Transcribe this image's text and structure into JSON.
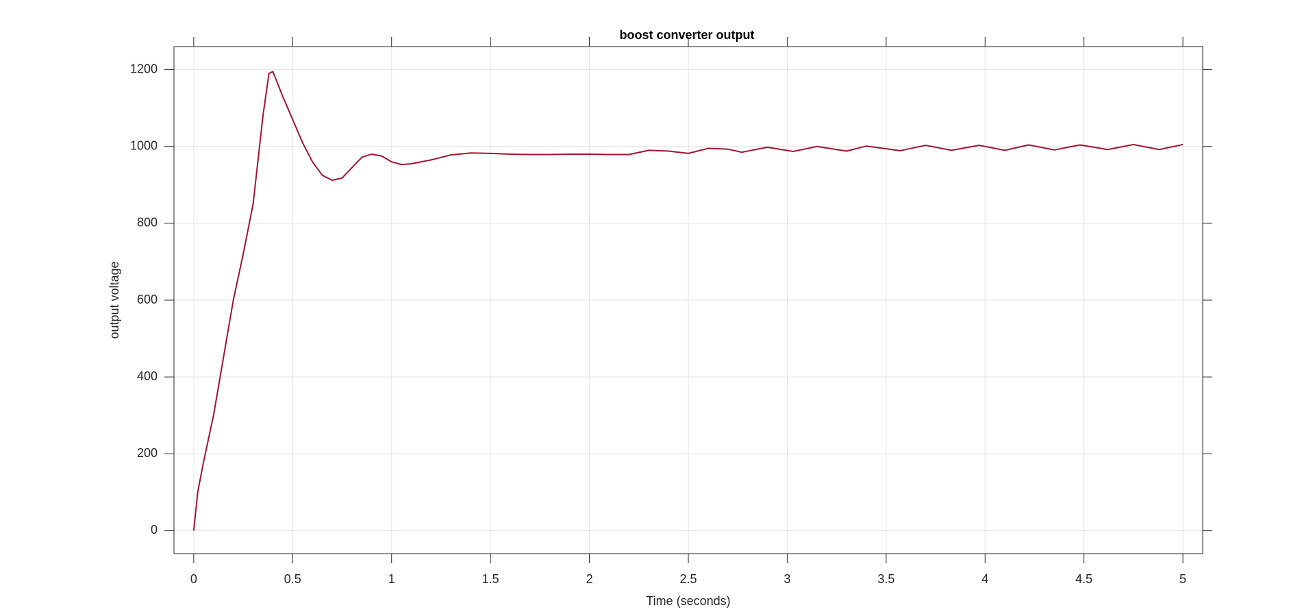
{
  "chart_data": {
    "type": "line",
    "title": "boost converter output",
    "xlabel": "Time (seconds)",
    "ylabel": "output voltage",
    "x": [
      0,
      0.02,
      0.05,
      0.1,
      0.15,
      0.2,
      0.25,
      0.3,
      0.35,
      0.38,
      0.4,
      0.45,
      0.5,
      0.55,
      0.6,
      0.65,
      0.7,
      0.75,
      0.8,
      0.85,
      0.9,
      0.95,
      1.0,
      1.05,
      1.1,
      1.2,
      1.3,
      1.4,
      1.5,
      1.6,
      1.7,
      1.8,
      1.9,
      2.0,
      2.1,
      2.2,
      2.3,
      2.4,
      2.5,
      2.6,
      2.7,
      2.77,
      2.9,
      3.03,
      3.15,
      3.3,
      3.4,
      3.57,
      3.7,
      3.83,
      3.97,
      4.1,
      4.22,
      4.35,
      4.48,
      4.62,
      4.75,
      4.88,
      5.0
    ],
    "series": [
      {
        "color": "#a2142f",
        "values": [
          0,
          100,
          180,
          300,
          450,
          600,
          720,
          850,
          1080,
          1190,
          1195,
          1130,
          1070,
          1010,
          960,
          925,
          912,
          918,
          945,
          972,
          980,
          975,
          960,
          953,
          955,
          965,
          978,
          983,
          982,
          980,
          979,
          979,
          980,
          980,
          979,
          979,
          990,
          988,
          982,
          995,
          993,
          985,
          998,
          987,
          1000,
          988,
          1001,
          989,
          1003,
          990,
          1003,
          990,
          1004,
          991,
          1004,
          992,
          1005,
          992,
          1005
        ]
      }
    ],
    "xlim": [
      -0.1,
      5.1
    ],
    "ylim": [
      -60,
      1260
    ],
    "xticks": [
      0,
      0.5,
      1,
      1.5,
      2,
      2.5,
      3,
      3.5,
      4,
      4.5,
      5
    ],
    "yticks": [
      0,
      200,
      400,
      600,
      800,
      1000,
      1200
    ],
    "grid": true
  }
}
